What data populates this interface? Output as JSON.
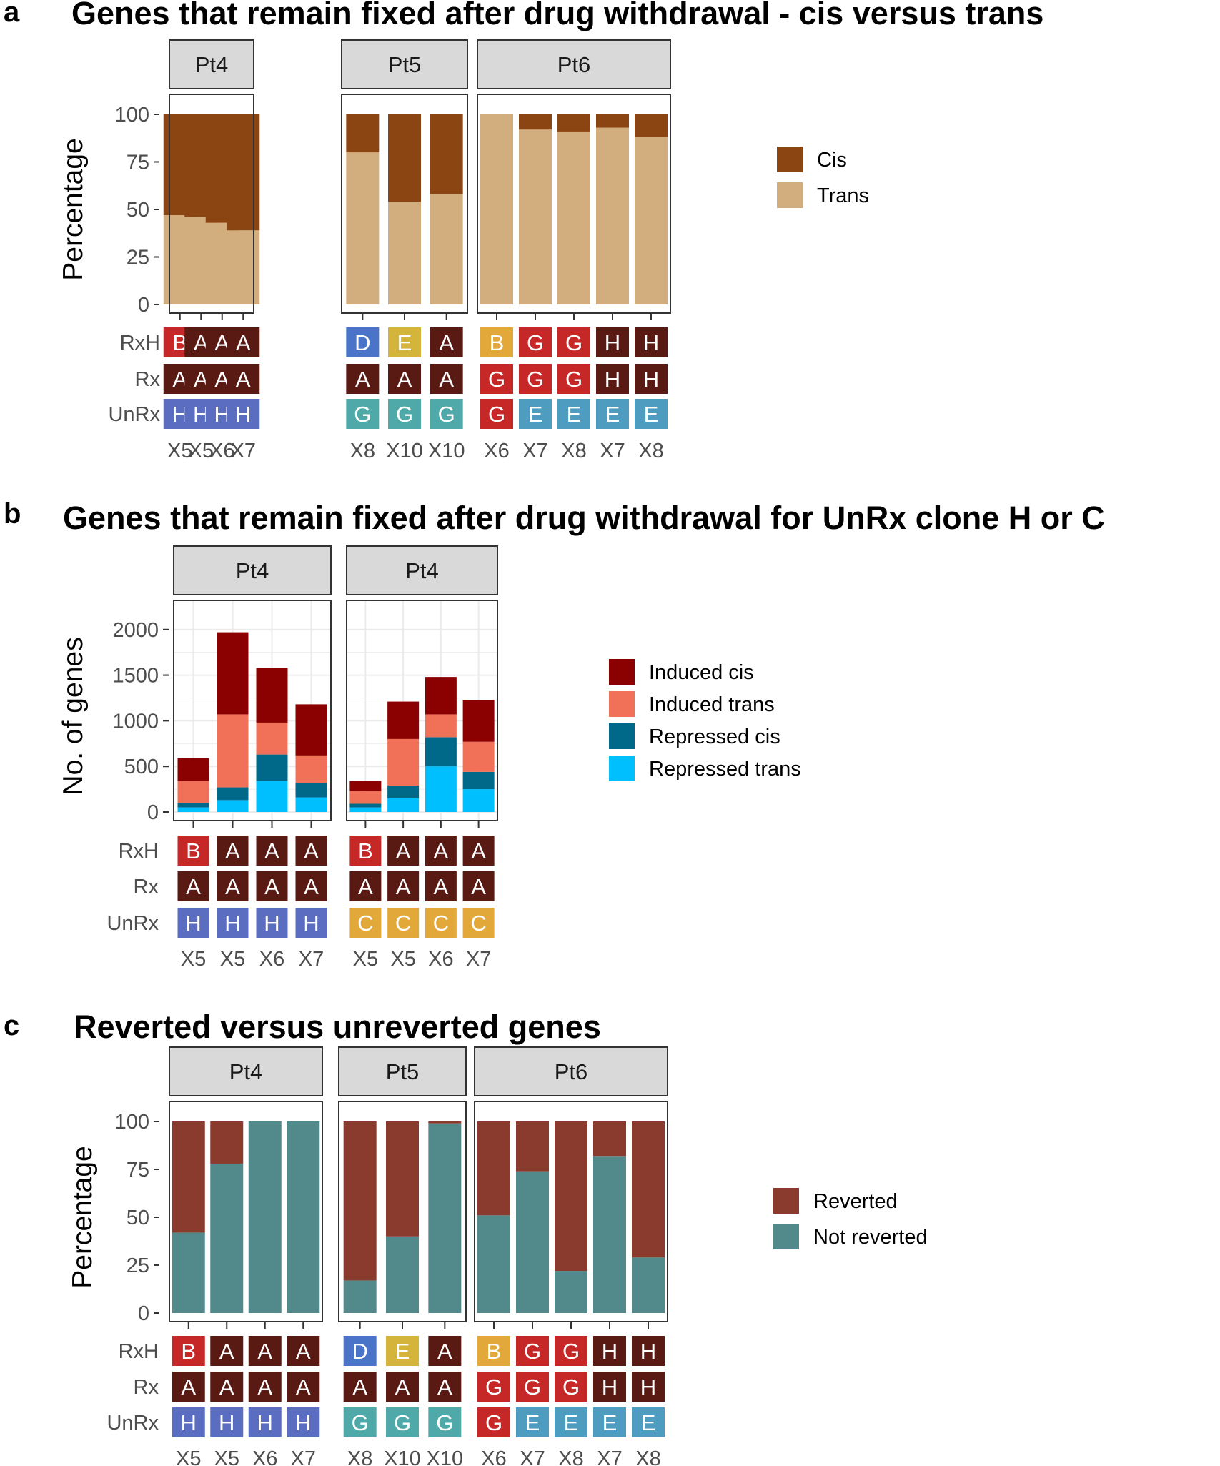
{
  "colors": {
    "cis": "#8B4513",
    "trans": "#D2AE7E",
    "induced_cis": "#8B0000",
    "induced_trans": "#F07058",
    "repressed_cis": "#006889",
    "repressed_trans": "#00BFFF",
    "reverted": "#8B3A2E",
    "not_reverted": "#528A8B",
    "tile_A": "#5A1A14",
    "tile_B_red": "#C62828",
    "tile_B_gold": "#E2A93A",
    "tile_D": "#4A74C8",
    "tile_E_gold": "#D4B43A",
    "tile_E_blue": "#4E9DC0",
    "tile_G_red": "#C62828",
    "tile_G_teal": "#4FA9A8",
    "tile_H_row": "#5A1A14",
    "tile_H_unrx": "#5B6DC0",
    "tile_C": "#E2A93A",
    "strip_bg": "#D9D9D9",
    "grid": "#EBEBEB"
  },
  "chart_data": [
    {
      "id": "a",
      "panel_letter": "a",
      "title": "Genes that remain fixed after drug withdrawal - cis versus trans",
      "type": "bar",
      "stacked": true,
      "ylabel": "Percentage",
      "ylim": [
        0,
        100
      ],
      "yticks": [
        "0",
        "25",
        "50",
        "75",
        "100"
      ],
      "grid": false,
      "legend_position": "right",
      "series": [
        {
          "name": "Cis",
          "color_key": "cis"
        },
        {
          "name": "Trans",
          "color_key": "trans"
        }
      ],
      "row_labels": [
        "RxH",
        "Rx",
        "UnRx"
      ],
      "facets": [
        {
          "label": "Pt4",
          "bars": [
            {
              "x": "X5",
              "values": [
                53,
                47
              ],
              "tiles": [
                "B",
                "A",
                "H"
              ]
            },
            {
              "x": "X5",
              "values": [
                54,
                46
              ],
              "tiles": [
                "A",
                "A",
                "H"
              ]
            },
            {
              "x": "X6",
              "values": [
                57,
                43
              ],
              "tiles": [
                "A",
                "A",
                "H"
              ]
            },
            {
              "x": "X7",
              "values": [
                61,
                39
              ],
              "tiles": [
                "A",
                "A",
                "H"
              ]
            }
          ]
        },
        {
          "label": "Pt5",
          "bars": [
            {
              "x": "X8",
              "values": [
                20,
                80
              ],
              "tiles": [
                "D",
                "A",
                "G"
              ]
            },
            {
              "x": "X10",
              "values": [
                46,
                54
              ],
              "tiles": [
                "E",
                "A",
                "G"
              ]
            },
            {
              "x": "X10",
              "values": [
                42,
                58
              ],
              "tiles": [
                "A",
                "A",
                "G"
              ]
            }
          ]
        },
        {
          "label": "Pt6",
          "bars": [
            {
              "x": "X6",
              "values": [
                0,
                100
              ],
              "tiles": [
                "B",
                "G",
                "G"
              ]
            },
            {
              "x": "X7",
              "values": [
                8,
                92
              ],
              "tiles": [
                "G",
                "G",
                "E"
              ]
            },
            {
              "x": "X8",
              "values": [
                9,
                91
              ],
              "tiles": [
                "G",
                "G",
                "E"
              ]
            },
            {
              "x": "X7",
              "values": [
                7,
                93
              ],
              "tiles": [
                "H",
                "H",
                "E"
              ]
            },
            {
              "x": "X8",
              "values": [
                12,
                88
              ],
              "tiles": [
                "H",
                "H",
                "E"
              ]
            }
          ]
        }
      ]
    },
    {
      "id": "b",
      "panel_letter": "b",
      "title": "Genes that remain fixed after drug withdrawal for UnRx clone H or C",
      "type": "bar",
      "stacked": true,
      "ylabel": "No. of genes",
      "ylim": [
        0,
        2100
      ],
      "yticks": [
        "0",
        "500",
        "1000",
        "1500",
        "2000"
      ],
      "grid": true,
      "legend_position": "right",
      "series": [
        {
          "name": "Induced cis",
          "color_key": "induced_cis"
        },
        {
          "name": "Induced trans",
          "color_key": "induced_trans"
        },
        {
          "name": "Repressed cis",
          "color_key": "repressed_cis"
        },
        {
          "name": "Repressed trans",
          "color_key": "repressed_trans"
        }
      ],
      "row_labels": [
        "RxH",
        "Rx",
        "UnRx"
      ],
      "facets": [
        {
          "label": "Pt4",
          "bars": [
            {
              "x": "X5",
              "values": [
                250,
                240,
                50,
                50
              ],
              "tiles": [
                "B",
                "A",
                "H"
              ]
            },
            {
              "x": "X5",
              "values": [
                900,
                800,
                140,
                130
              ],
              "tiles": [
                "A",
                "A",
                "H"
              ]
            },
            {
              "x": "X6",
              "values": [
                600,
                350,
                290,
                340
              ],
              "tiles": [
                "A",
                "A",
                "H"
              ]
            },
            {
              "x": "X7",
              "values": [
                560,
                300,
                160,
                160
              ],
              "tiles": [
                "A",
                "A",
                "H"
              ]
            }
          ]
        },
        {
          "label": "Pt4",
          "bars": [
            {
              "x": "X5",
              "values": [
                110,
                140,
                40,
                50
              ],
              "tiles": [
                "B",
                "A",
                "C"
              ]
            },
            {
              "x": "X5",
              "values": [
                410,
                510,
                140,
                150
              ],
              "tiles": [
                "A",
                "A",
                "C"
              ]
            },
            {
              "x": "X6",
              "values": [
                410,
                250,
                320,
                500
              ],
              "tiles": [
                "A",
                "A",
                "C"
              ]
            },
            {
              "x": "X7",
              "values": [
                460,
                330,
                190,
                250
              ],
              "tiles": [
                "A",
                "A",
                "C"
              ]
            }
          ]
        }
      ]
    },
    {
      "id": "c",
      "panel_letter": "c",
      "title": "Reverted versus unreverted genes",
      "type": "bar",
      "stacked": true,
      "ylabel": "Percentage",
      "ylim": [
        0,
        100
      ],
      "yticks": [
        "0",
        "25",
        "50",
        "75",
        "100"
      ],
      "grid": false,
      "legend_position": "right",
      "series": [
        {
          "name": "Reverted",
          "color_key": "reverted"
        },
        {
          "name": "Not reverted",
          "color_key": "not_reverted"
        }
      ],
      "row_labels": [
        "RxH",
        "Rx",
        "UnRx"
      ],
      "facets": [
        {
          "label": "Pt4",
          "bars": [
            {
              "x": "X5",
              "values": [
                58,
                42
              ],
              "tiles": [
                "B",
                "A",
                "H"
              ]
            },
            {
              "x": "X5",
              "values": [
                22,
                78
              ],
              "tiles": [
                "A",
                "A",
                "H"
              ]
            },
            {
              "x": "X6",
              "values": [
                0,
                100
              ],
              "tiles": [
                "A",
                "A",
                "H"
              ]
            },
            {
              "x": "X7",
              "values": [
                0,
                100
              ],
              "tiles": [
                "A",
                "A",
                "H"
              ]
            }
          ]
        },
        {
          "label": "Pt5",
          "bars": [
            {
              "x": "X8",
              "values": [
                83,
                17
              ],
              "tiles": [
                "D",
                "A",
                "G"
              ]
            },
            {
              "x": "X10",
              "values": [
                60,
                40
              ],
              "tiles": [
                "E",
                "A",
                "G"
              ]
            },
            {
              "x": "X10",
              "values": [
                1,
                99
              ],
              "tiles": [
                "A",
                "A",
                "G"
              ]
            }
          ]
        },
        {
          "label": "Pt6",
          "bars": [
            {
              "x": "X6",
              "values": [
                49,
                51
              ],
              "tiles": [
                "B",
                "G",
                "G"
              ]
            },
            {
              "x": "X7",
              "values": [
                26,
                74
              ],
              "tiles": [
                "G",
                "G",
                "E"
              ]
            },
            {
              "x": "X8",
              "values": [
                78,
                22
              ],
              "tiles": [
                "G",
                "G",
                "E"
              ]
            },
            {
              "x": "X7",
              "values": [
                18,
                82
              ],
              "tiles": [
                "H",
                "H",
                "E"
              ]
            },
            {
              "x": "X8",
              "values": [
                71,
                29
              ],
              "tiles": [
                "H",
                "H",
                "E"
              ]
            }
          ]
        }
      ]
    }
  ]
}
